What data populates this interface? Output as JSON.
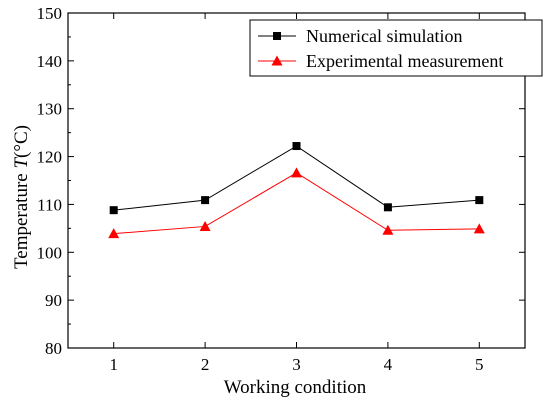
{
  "chart_data": {
    "type": "line",
    "title": "",
    "xlabel": "Working condition",
    "ylabel_prefix": "Temperature  ",
    "ylabel_var": "T",
    "ylabel_unit": "(°C)",
    "x": [
      1,
      2,
      3,
      4,
      5
    ],
    "xlim": [
      0.5,
      5.5
    ],
    "ylim": [
      80,
      150
    ],
    "yticks": [
      80,
      90,
      100,
      110,
      120,
      130,
      140,
      150
    ],
    "xticks": [
      1,
      2,
      3,
      4,
      5
    ],
    "grid": false,
    "legend_position": "top-right",
    "series": [
      {
        "name": "Numerical simulation",
        "values": [
          108.8,
          110.9,
          122.2,
          109.4,
          110.9
        ],
        "color": "#000000",
        "marker": "square"
      },
      {
        "name": "Experimental measurement",
        "values": [
          103.9,
          105.4,
          116.6,
          104.6,
          104.9
        ],
        "color": "#ff0000",
        "marker": "triangle"
      }
    ]
  }
}
